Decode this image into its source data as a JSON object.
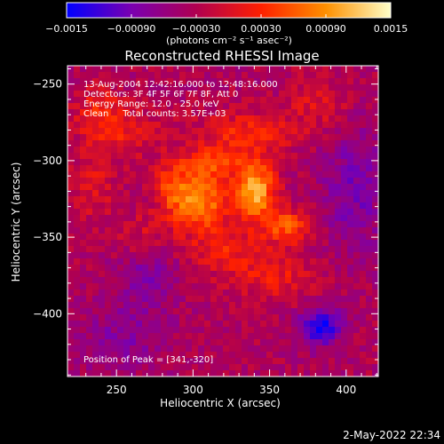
{
  "chart_data": {
    "type": "heatmap",
    "title": "Reconstructed RHESSI Image",
    "xlabel": "Heliocentric X (arcsec)",
    "ylabel": "Heliocentric Y (arcsec)",
    "xlim": [
      218,
      421
    ],
    "ylim": [
      -441,
      -238
    ],
    "x_ticks": [
      250,
      300,
      350,
      400
    ],
    "x_tick_labels": [
      "250",
      "300",
      "350",
      "400"
    ],
    "y_ticks": [
      -250,
      -300,
      -350,
      -400
    ],
    "y_tick_labels": [
      "−250",
      "−300",
      "−350",
      "−400"
    ],
    "colorbar": {
      "range": [
        -0.0015,
        0.0015
      ],
      "ticks": [
        -0.0015,
        -0.0009,
        -0.0003,
        0.0003,
        0.0009,
        0.0015
      ],
      "tick_labels": [
        "−0.0015",
        "−0.00090",
        "−0.00030",
        "0.00030",
        "0.00090",
        "0.0015"
      ],
      "units_label": "(photons cm⁻² s⁻¹ asec⁻²)",
      "colors": [
        "#0000ff",
        "#7a00b0",
        "#b00050",
        "#ff2000",
        "#ff9000",
        "#ffffc8"
      ]
    },
    "annotations": [
      "13-Aug-2004 12:42:16.000 to 12:48:16.000",
      "Detectors: 3F 4F 5F 6F 7F 8F, Att 0",
      "Energy Range: 12.0 - 25.0 keV",
      "Clean     Total counts: 3.57E+03"
    ],
    "peak_label": "Position of Peak = [341,-320]",
    "sources": [
      {
        "x": 341,
        "y": -320,
        "strength": 0.0014,
        "sx": 9,
        "sy": 14
      },
      {
        "x": 303,
        "y": -328,
        "strength": 0.0012,
        "sx": 14,
        "sy": 12
      },
      {
        "x": 312,
        "y": -302,
        "strength": 0.0008,
        "sx": 14,
        "sy": 8
      },
      {
        "x": 361,
        "y": -343,
        "strength": 0.0009,
        "sx": 10,
        "sy": 8
      },
      {
        "x": 287,
        "y": -315,
        "strength": 0.0006,
        "sx": 8,
        "sy": 10
      },
      {
        "x": 335,
        "y": -282,
        "strength": 0.0006,
        "sx": 22,
        "sy": 10
      },
      {
        "x": 252,
        "y": -282,
        "strength": 0.0005,
        "sx": 18,
        "sy": 12
      },
      {
        "x": 238,
        "y": -265,
        "strength": 0.0005,
        "sx": 10,
        "sy": 10
      },
      {
        "x": 352,
        "y": -375,
        "strength": 0.0005,
        "sx": 20,
        "sy": 12
      },
      {
        "x": 383,
        "y": -262,
        "strength": 0.0004,
        "sx": 14,
        "sy": 12
      },
      {
        "x": 318,
        "y": -358,
        "strength": 0.0005,
        "sx": 16,
        "sy": 10
      },
      {
        "x": 235,
        "y": -318,
        "strength": 0.0004,
        "sx": 10,
        "sy": 14
      },
      {
        "x": 265,
        "y": -348,
        "strength": 0.0003,
        "sx": 14,
        "sy": 10
      },
      {
        "x": 383,
        "y": -408,
        "strength": -0.0011,
        "sx": 9,
        "sy": 9
      },
      {
        "x": 405,
        "y": -318,
        "strength": -0.0005,
        "sx": 14,
        "sy": 30
      },
      {
        "x": 255,
        "y": -415,
        "strength": -0.0004,
        "sx": 20,
        "sy": 16
      },
      {
        "x": 270,
        "y": -375,
        "strength": -0.0004,
        "sx": 14,
        "sy": 14
      }
    ]
  },
  "footer": {
    "timestamp": "2-May-2022 22:34"
  }
}
